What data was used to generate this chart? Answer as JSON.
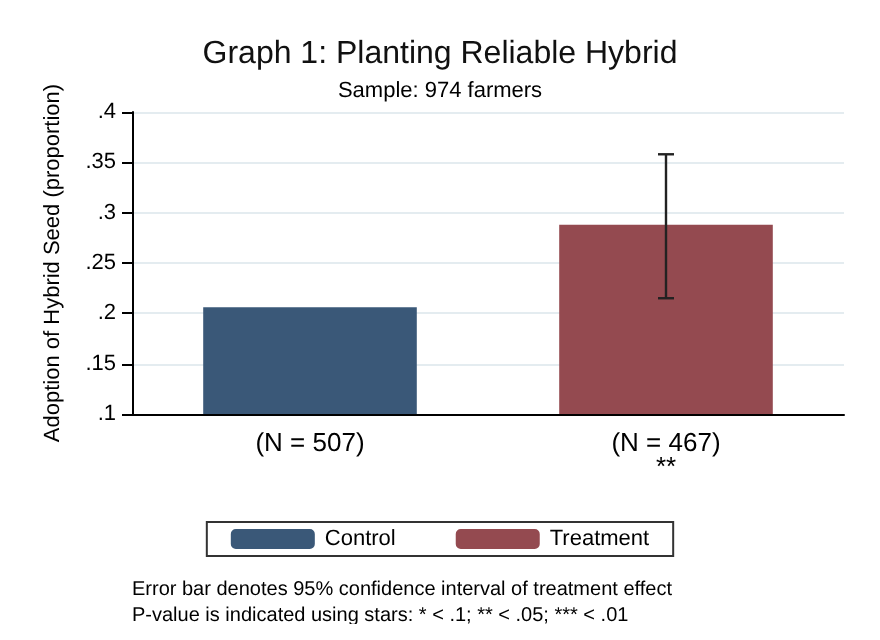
{
  "chart_data": {
    "type": "bar",
    "title": "Graph 1: Planting Reliable Hybrid",
    "subtitle": "Sample: 974 farmers",
    "ylabel": "Adoption of Hybrid Seed (proportion)",
    "categories": [
      "(N = 507)",
      "(N = 467)\n**"
    ],
    "series": [
      {
        "name": "Control",
        "color": "#3a5878",
        "values": [
          0.206,
          null
        ]
      },
      {
        "name": "Treatment",
        "color": "#944a50",
        "values": [
          null,
          0.288
        ],
        "errors": [
          null,
          [
            0.215,
            0.358
          ]
        ]
      }
    ],
    "ylim": [
      0.1,
      0.4
    ],
    "yticks": [
      {
        "value": 0.1,
        "label": ".1"
      },
      {
        "value": 0.15,
        "label": ".15"
      },
      {
        "value": 0.2,
        "label": ".2"
      },
      {
        "value": 0.25,
        "label": ".25"
      },
      {
        "value": 0.3,
        "label": ".3"
      },
      {
        "value": 0.35,
        "label": ".35"
      },
      {
        "value": 0.4,
        "label": ".4"
      }
    ],
    "grid": "y",
    "legend": "bottom",
    "annotations": [
      "Error bar denotes 95% confidence interval of treatment effect",
      "P-value is indicated using stars: * < .1; ** < .05; *** < .01"
    ]
  }
}
